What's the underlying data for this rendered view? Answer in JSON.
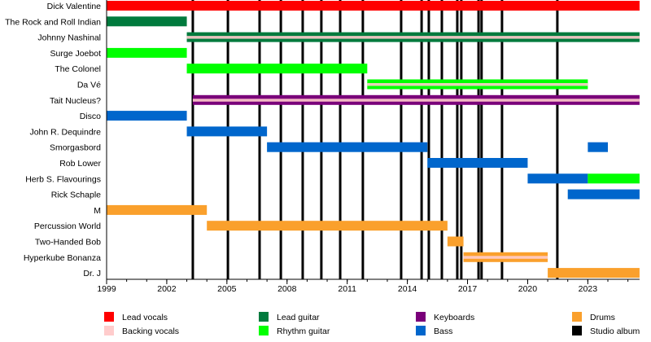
{
  "chart_data": {
    "type": "timeline",
    "title": "",
    "xlim": [
      1999,
      2025.58
    ],
    "x_ticks": [
      1999,
      2002,
      2005,
      2008,
      2011,
      2014,
      2017,
      2020,
      2023
    ],
    "minor_tick_interval_years": 1,
    "grid": false,
    "legend_placement": "bottom",
    "colors": {
      "lead_vocals": "#FF0000",
      "backing_vocals": "#FFCCCC",
      "lead_guitar": "#007A3D",
      "rhythm_guitar": "#00FF00",
      "keyboards": "#7A007A",
      "bass": "#0066CC",
      "drums": "#FAA02C",
      "studio_album": "#000000"
    },
    "legend": [
      {
        "key": "lead_vocals",
        "label": "Lead vocals"
      },
      {
        "key": "backing_vocals",
        "label": "Backing vocals"
      },
      {
        "key": "lead_guitar",
        "label": "Lead guitar"
      },
      {
        "key": "rhythm_guitar",
        "label": "Rhythm guitar"
      },
      {
        "key": "keyboards",
        "label": "Keyboards"
      },
      {
        "key": "bass",
        "label": "Bass"
      },
      {
        "key": "drums",
        "label": "Drums"
      },
      {
        "key": "studio_album",
        "label": "Studio album"
      }
    ],
    "studio_albums": [
      2003.3,
      2005.05,
      2006.63,
      2007.69,
      2008.78,
      2009.71,
      2010.65,
      2011.78,
      2013.69,
      2014.71,
      2015.07,
      2015.72,
      2016.49,
      2016.69,
      2017.55,
      2017.7,
      2018.72,
      2021.48
    ],
    "members": [
      {
        "name": "Dick Valentine",
        "periods": [
          {
            "start": 1999,
            "end": 2025.58,
            "role": "lead_vocals"
          }
        ]
      },
      {
        "name": "The Rock and Roll Indian",
        "periods": [
          {
            "start": 1999,
            "end": 2003,
            "role": "lead_guitar"
          }
        ]
      },
      {
        "name": "Johnny Nashinal",
        "periods": [
          {
            "start": 2003,
            "end": 2025.58,
            "role": "lead_guitar",
            "secondary": "backing_vocals"
          }
        ]
      },
      {
        "name": "Surge Joebot",
        "periods": [
          {
            "start": 1999,
            "end": 2003,
            "role": "rhythm_guitar"
          }
        ]
      },
      {
        "name": "The Colonel",
        "periods": [
          {
            "start": 2003,
            "end": 2012,
            "role": "rhythm_guitar"
          }
        ]
      },
      {
        "name": "Da Vé",
        "periods": [
          {
            "start": 2012,
            "end": 2023,
            "role": "rhythm_guitar",
            "secondary": "backing_vocals"
          }
        ]
      },
      {
        "name": "Tait Nucleus?",
        "periods": [
          {
            "start": 2003.3,
            "end": 2025.58,
            "role": "keyboards",
            "secondary": "backing_vocals"
          }
        ]
      },
      {
        "name": "Disco",
        "periods": [
          {
            "start": 1999,
            "end": 2003,
            "role": "bass"
          }
        ]
      },
      {
        "name": "John R. Dequindre",
        "periods": [
          {
            "start": 2003,
            "end": 2007,
            "role": "bass"
          }
        ]
      },
      {
        "name": "Smorgasbord",
        "periods": [
          {
            "start": 2007,
            "end": 2015,
            "role": "bass"
          },
          {
            "start": 2023,
            "end": 2024,
            "role": "bass"
          }
        ]
      },
      {
        "name": "Rob Lower",
        "periods": [
          {
            "start": 2015,
            "end": 2020,
            "role": "bass"
          }
        ]
      },
      {
        "name": "Herb S. Flavourings",
        "periods": [
          {
            "start": 2020,
            "end": 2023,
            "role": "bass"
          },
          {
            "start": 2023,
            "end": 2025.58,
            "role": "rhythm_guitar"
          }
        ]
      },
      {
        "name": "Rick Schaple",
        "periods": [
          {
            "start": 2022,
            "end": 2025.58,
            "role": "bass"
          }
        ]
      },
      {
        "name": "M",
        "periods": [
          {
            "start": 1999,
            "end": 2004,
            "role": "drums"
          }
        ]
      },
      {
        "name": "Percussion World",
        "periods": [
          {
            "start": 2004,
            "end": 2016,
            "role": "drums"
          }
        ]
      },
      {
        "name": "Two-Handed Bob",
        "periods": [
          {
            "start": 2016,
            "end": 2016.8,
            "role": "drums"
          }
        ]
      },
      {
        "name": "Hyperkube Bonanza",
        "periods": [
          {
            "start": 2016.8,
            "end": 2021,
            "role": "drums",
            "secondary": "backing_vocals"
          }
        ]
      },
      {
        "name": "Dr. J",
        "periods": [
          {
            "start": 2021,
            "end": 2025.58,
            "role": "drums"
          }
        ]
      }
    ]
  }
}
